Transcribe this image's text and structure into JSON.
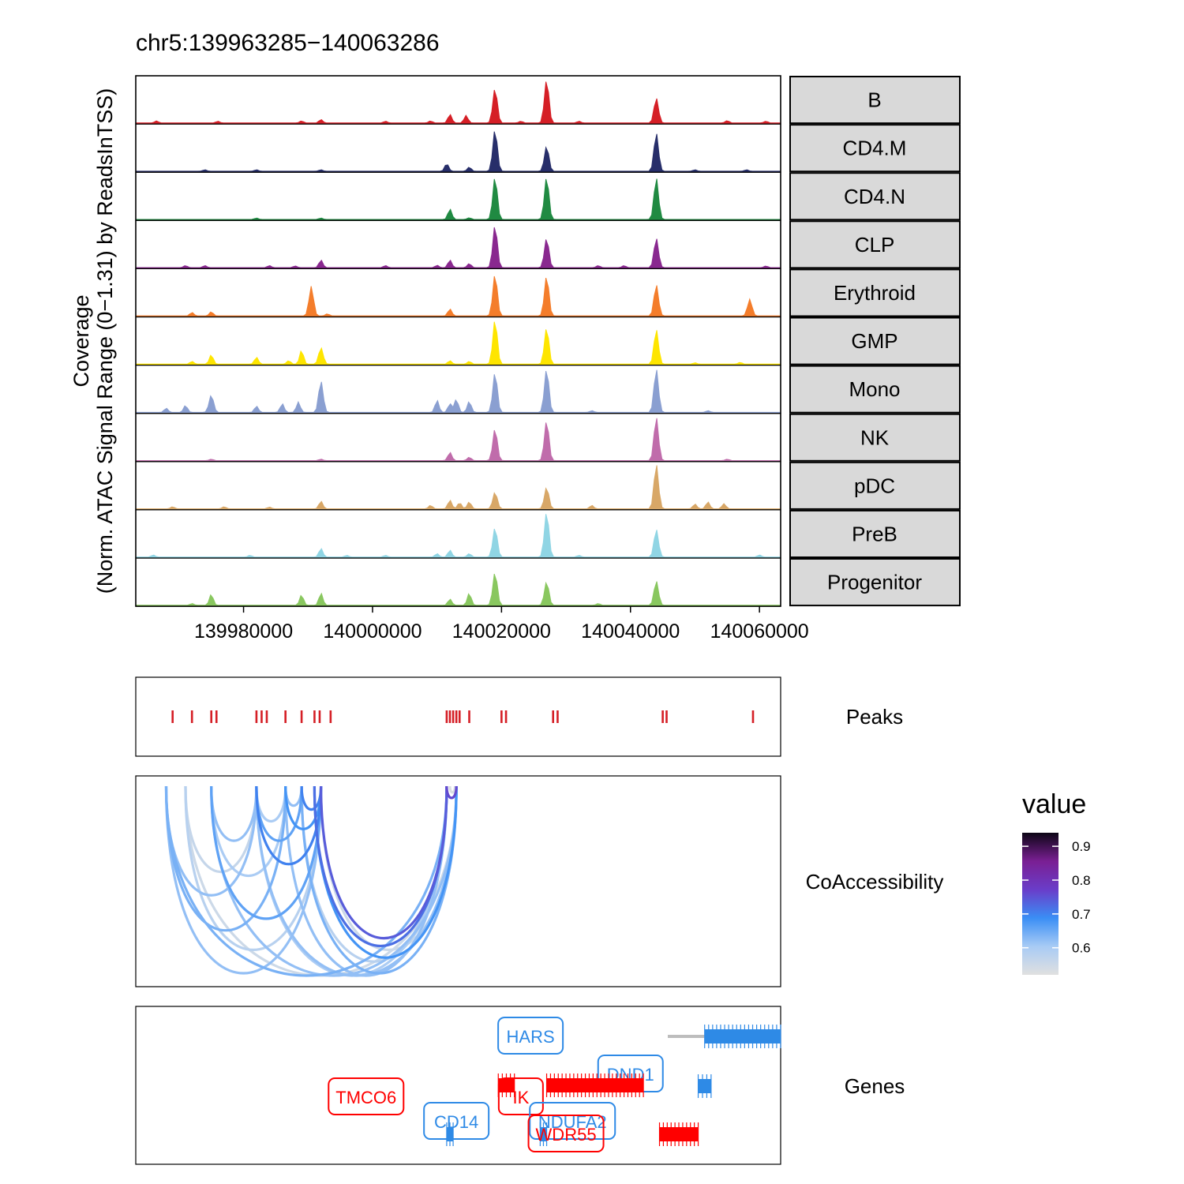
{
  "chart_data": [
    {
      "type": "area",
      "panel": "Coverage",
      "title": "chr5:139963285−140063286",
      "ylabel_line1": "Coverage",
      "ylabel_line2": "(Norm. ATAC Signal Range (0−1.31) by ReadsInTSS)",
      "xlim": [
        139963285,
        140063286
      ],
      "ylim": [
        0,
        1.31
      ],
      "x_ticks": [
        139980000,
        140000000,
        140020000,
        140040000,
        140060000
      ],
      "x_tick_labels": [
        "139980000",
        "140000000",
        "140020000",
        "140040000",
        "140060000"
      ],
      "tracks": [
        {
          "name": "B",
          "color": "#D51F26",
          "peaks": [
            [
              139966500,
              0.06
            ],
            [
              139976000,
              0.05
            ],
            [
              139989000,
              0.06
            ],
            [
              139992000,
              0.1
            ],
            [
              140002000,
              0.05
            ],
            [
              140009000,
              0.06
            ],
            [
              140012000,
              0.25
            ],
            [
              140014500,
              0.22
            ],
            [
              140019000,
              1.0
            ],
            [
              140023000,
              0.05
            ],
            [
              140027000,
              1.25
            ],
            [
              140032000,
              0.05
            ],
            [
              140044000,
              0.72
            ],
            [
              140055000,
              0.07
            ],
            [
              140061000,
              0.05
            ]
          ]
        },
        {
          "name": "CD4.M",
          "color": "#272E6A",
          "peaks": [
            [
              139974000,
              0.04
            ],
            [
              139982000,
              0.04
            ],
            [
              139992000,
              0.04
            ],
            [
              140011500,
              0.22
            ],
            [
              140015000,
              0.12
            ],
            [
              140019000,
              1.2
            ],
            [
              140027000,
              0.72
            ],
            [
              140044000,
              1.1
            ],
            [
              140050000,
              0.04
            ],
            [
              140058000,
              0.04
            ]
          ]
        },
        {
          "name": "CD4.N",
          "color": "#208A42",
          "peaks": [
            [
              139982000,
              0.04
            ],
            [
              139992000,
              0.04
            ],
            [
              140012000,
              0.3
            ],
            [
              140015000,
              0.05
            ],
            [
              140019000,
              1.22
            ],
            [
              140027000,
              1.22
            ],
            [
              140044000,
              1.2
            ]
          ]
        },
        {
          "name": "CLP",
          "color": "#89288F",
          "peaks": [
            [
              139971000,
              0.06
            ],
            [
              139974000,
              0.06
            ],
            [
              139984000,
              0.06
            ],
            [
              139988000,
              0.05
            ],
            [
              139992000,
              0.22
            ],
            [
              140002000,
              0.06
            ],
            [
              140010000,
              0.07
            ],
            [
              140012000,
              0.22
            ],
            [
              140015000,
              0.12
            ],
            [
              140019000,
              1.22
            ],
            [
              140027000,
              0.85
            ],
            [
              140035000,
              0.06
            ],
            [
              140039000,
              0.06
            ],
            [
              140044000,
              0.85
            ],
            [
              140061000,
              0.05
            ]
          ]
        },
        {
          "name": "Erythroid",
          "color": "#F47D2B",
          "peaks": [
            [
              139972000,
              0.1
            ],
            [
              139975000,
              0.12
            ],
            [
              139990500,
              0.85
            ],
            [
              139993000,
              0.06
            ],
            [
              140012000,
              0.2
            ],
            [
              140019000,
              1.2
            ],
            [
              140027000,
              1.15
            ],
            [
              140044000,
              0.9
            ],
            [
              140058500,
              0.48
            ]
          ]
        },
        {
          "name": "GMP",
          "color": "#FEE500",
          "peaks": [
            [
              139972000,
              0.08
            ],
            [
              139975000,
              0.27
            ],
            [
              139982000,
              0.2
            ],
            [
              139987000,
              0.1
            ],
            [
              139989000,
              0.4
            ],
            [
              139992000,
              0.47
            ],
            [
              140012000,
              0.1
            ],
            [
              140015000,
              0.08
            ],
            [
              140019000,
              1.28
            ],
            [
              140027000,
              1.05
            ],
            [
              140044000,
              1.0
            ],
            [
              140050000,
              0.04
            ],
            [
              140057000,
              0.05
            ]
          ]
        },
        {
          "name": "Mono",
          "color": "#8A9FD1",
          "peaks": [
            [
              139968000,
              0.12
            ],
            [
              139971000,
              0.2
            ],
            [
              139975000,
              0.5
            ],
            [
              139982000,
              0.18
            ],
            [
              139986000,
              0.25
            ],
            [
              139988500,
              0.3
            ],
            [
              139992000,
              0.9
            ],
            [
              140010000,
              0.35
            ],
            [
              140012000,
              0.25
            ],
            [
              140013000,
              0.38
            ],
            [
              140015000,
              0.32
            ],
            [
              140019000,
              1.15
            ],
            [
              140027000,
              1.25
            ],
            [
              140034000,
              0.05
            ],
            [
              140044000,
              1.25
            ],
            [
              140052000,
              0.05
            ]
          ]
        },
        {
          "name": "NK",
          "color": "#C06CAB",
          "peaks": [
            [
              139975000,
              0.04
            ],
            [
              139992000,
              0.04
            ],
            [
              140012000,
              0.24
            ],
            [
              140015000,
              0.1
            ],
            [
              140019000,
              0.92
            ],
            [
              140027000,
              1.15
            ],
            [
              140044000,
              1.25
            ],
            [
              140055000,
              0.04
            ]
          ]
        },
        {
          "name": "pDC",
          "color": "#D8A767",
          "peaks": [
            [
              139969000,
              0.06
            ],
            [
              139977000,
              0.06
            ],
            [
              139984000,
              0.05
            ],
            [
              139992000,
              0.22
            ],
            [
              140009000,
              0.1
            ],
            [
              140012000,
              0.25
            ],
            [
              140013500,
              0.18
            ],
            [
              140015000,
              0.2
            ],
            [
              140019000,
              0.48
            ],
            [
              140027000,
              0.62
            ],
            [
              140034000,
              0.1
            ],
            [
              140044000,
              1.28
            ],
            [
              140050000,
              0.14
            ],
            [
              140052000,
              0.2
            ],
            [
              140054500,
              0.15
            ]
          ]
        },
        {
          "name": "PreB",
          "color": "#90D5E4",
          "peaks": [
            [
              139966000,
              0.06
            ],
            [
              139981000,
              0.05
            ],
            [
              139992000,
              0.25
            ],
            [
              139996000,
              0.05
            ],
            [
              140002000,
              0.05
            ],
            [
              140010000,
              0.1
            ],
            [
              140012000,
              0.2
            ],
            [
              140015000,
              0.1
            ],
            [
              140019000,
              0.85
            ],
            [
              140027000,
              1.3
            ],
            [
              140032000,
              0.05
            ],
            [
              140044000,
              0.8
            ],
            [
              140060000,
              0.06
            ]
          ]
        },
        {
          "name": "Progenitor",
          "color": "#89C75F",
          "peaks": [
            [
              139972000,
              0.05
            ],
            [
              139975000,
              0.32
            ],
            [
              139989000,
              0.3
            ],
            [
              139992000,
              0.35
            ],
            [
              140012000,
              0.18
            ],
            [
              140015000,
              0.35
            ],
            [
              140019000,
              0.95
            ],
            [
              140027000,
              0.68
            ],
            [
              140035000,
              0.05
            ],
            [
              140044000,
              0.7
            ]
          ]
        }
      ]
    },
    {
      "type": "scatter",
      "panel": "Peaks",
      "label": "Peaks",
      "color": "#D51F26",
      "x": [
        139969000,
        139972000,
        139975000,
        139975800,
        139982000,
        139982800,
        139983600,
        139986500,
        139989000,
        139991000,
        139991800,
        139993500,
        140011500,
        140012000,
        140012500,
        140013000,
        140013500,
        140015000,
        140020000,
        140020700,
        140028000,
        140028700,
        140045000,
        140045600,
        140059000
      ]
    },
    {
      "type": "line",
      "panel": "CoAccessibility",
      "label": "CoAccessibility",
      "legend_title": "value",
      "legend_ticks": [
        "0.9",
        "0.8",
        "0.7",
        "0.6"
      ],
      "legend_tick_values": [
        0.9,
        0.8,
        0.7,
        0.6
      ],
      "color_range": [
        0.52,
        0.94
      ],
      "color_stops": [
        "#E0E0E0",
        "#A8CBF5",
        "#3A8EF5",
        "#6A3DC9",
        "#7A1F93",
        "#0D0616"
      ],
      "loops": [
        {
          "start": 139968000,
          "end": 139992000,
          "value": 0.62
        },
        {
          "start": 139968000,
          "end": 140011500,
          "value": 0.64
        },
        {
          "start": 139968000,
          "end": 139986500,
          "value": 0.64
        },
        {
          "start": 139968000,
          "end": 139982000,
          "value": 0.62
        },
        {
          "start": 139971000,
          "end": 140013000,
          "value": 0.55
        },
        {
          "start": 139971000,
          "end": 139992000,
          "value": 0.58
        },
        {
          "start": 139971000,
          "end": 139982000,
          "value": 0.56
        },
        {
          "start": 139975000,
          "end": 140013000,
          "value": 0.62
        },
        {
          "start": 139975000,
          "end": 139992000,
          "value": 0.66
        },
        {
          "start": 139975000,
          "end": 139986500,
          "value": 0.6
        },
        {
          "start": 139975000,
          "end": 139982000,
          "value": 0.62
        },
        {
          "start": 139982000,
          "end": 140013000,
          "value": 0.62
        },
        {
          "start": 139982000,
          "end": 140011500,
          "value": 0.6
        },
        {
          "start": 139982000,
          "end": 139992000,
          "value": 0.7
        },
        {
          "start": 139982000,
          "end": 139989000,
          "value": 0.66
        },
        {
          "start": 139982000,
          "end": 139986500,
          "value": 0.6
        },
        {
          "start": 139986500,
          "end": 140011500,
          "value": 0.62
        },
        {
          "start": 139986500,
          "end": 139992000,
          "value": 0.68
        },
        {
          "start": 139986500,
          "end": 139989000,
          "value": 0.62
        },
        {
          "start": 139989000,
          "end": 140013000,
          "value": 0.64
        },
        {
          "start": 139989000,
          "end": 140011500,
          "value": 0.58
        },
        {
          "start": 139989000,
          "end": 139992000,
          "value": 0.7
        },
        {
          "start": 139991000,
          "end": 140011500,
          "value": 0.72
        },
        {
          "start": 139991000,
          "end": 140013000,
          "value": 0.68
        },
        {
          "start": 139992000,
          "end": 140011500,
          "value": 0.74
        },
        {
          "start": 139992000,
          "end": 140013000,
          "value": 0.55
        },
        {
          "start": 140011500,
          "end": 140013000,
          "value": 0.76
        },
        {
          "start": 140012000,
          "end": 140012800,
          "value": 0.53
        }
      ]
    },
    {
      "type": "table",
      "panel": "Genes",
      "label": "Genes",
      "genes": [
        {
          "name": "HARS",
          "strand": "minus",
          "color": "#2E8AE6",
          "start": 140051500,
          "end": 140063286,
          "label_x": 140024500,
          "label_row": 0
        },
        {
          "name": "DND1",
          "strand": "minus",
          "color": "#2E8AE6",
          "start": 140050500,
          "end": 140052500,
          "label_x": 140040000,
          "label_row": 1
        },
        {
          "name": "TMCO6",
          "strand": "plus",
          "color": "#FF0000",
          "start": 140019500,
          "end": 140022000,
          "label_x": 139999000,
          "label_row": 2
        },
        {
          "name": "IK",
          "strand": "plus",
          "color": "#FF0000",
          "start": 140027000,
          "end": 140042000,
          "label_x": 140023000,
          "label_row": 2
        },
        {
          "name": "CD14",
          "strand": "minus",
          "color": "#2E8AE6",
          "start": 140011500,
          "end": 140012500,
          "label_x": 140013000,
          "label_row": 3
        },
        {
          "name": "NDUFA2",
          "strand": "minus",
          "color": "#2E8AE6",
          "start": 140026000,
          "end": 140027000,
          "label_x": 140031000,
          "label_row": 3
        },
        {
          "name": "WDR55",
          "strand": "plus",
          "color": "#FF0000",
          "start": 140044500,
          "end": 140050500,
          "label_x": 140030000,
          "label_row": 4
        }
      ]
    }
  ]
}
